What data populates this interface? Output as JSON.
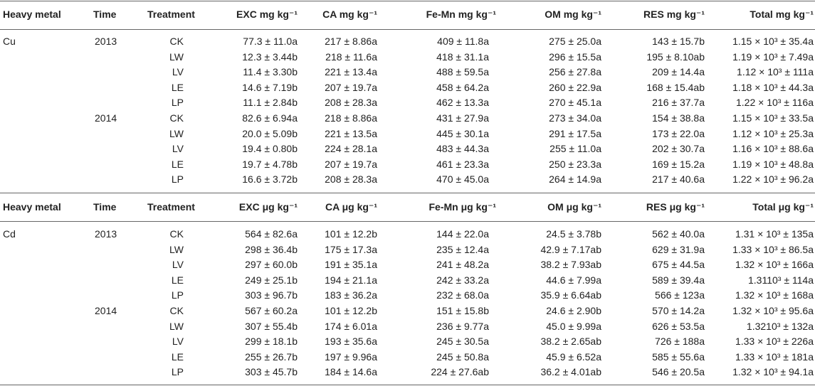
{
  "sections": [
    {
      "header": [
        "Heavy metal",
        "Time",
        "Treatment",
        "EXC mg kg⁻¹",
        "CA mg kg⁻¹",
        "Fe-Mn mg kg⁻¹",
        "OM mg kg⁻¹",
        "RES mg kg⁻¹",
        "Total mg kg⁻¹"
      ],
      "metal": "Cu",
      "groups": [
        {
          "time": "2013",
          "rows": [
            [
              "CK",
              "77.3 ± 11.0a",
              "217 ± 8.86a",
              "409 ± 11.8a",
              "275 ± 25.0a",
              "143 ± 15.7b",
              "1.15 × 10³ ± 35.4a"
            ],
            [
              "LW",
              "12.3 ± 3.44b",
              "218 ± 11.6a",
              "418 ± 31.1a",
              "296 ± 15.5a",
              "195 ± 8.10ab",
              "1.19 × 10³ ± 7.49a"
            ],
            [
              "LV",
              "11.4 ± 3.30b",
              "221 ± 13.4a",
              "488 ± 59.5a",
              "256 ± 27.8a",
              "209 ± 14.4a",
              "1.12 × 10³ ± 111a"
            ],
            [
              "LE",
              "14.6 ± 7.19b",
              "207 ± 19.7a",
              "458 ± 64.2a",
              "260 ± 22.9a",
              "168 ± 15.4ab",
              "1.18 × 10³ ± 44.3a"
            ],
            [
              "LP",
              "11.1 ± 2.84b",
              "208 ± 28.3a",
              "462 ± 13.3a",
              "270 ± 45.1a",
              "216 ± 37.7a",
              "1.22 × 10³ ± 116a"
            ]
          ]
        },
        {
          "time": "2014",
          "rows": [
            [
              "CK",
              "82.6 ± 6.94a",
              "218 ± 8.86a",
              "431 ± 27.9a",
              "273 ± 34.0a",
              "154 ± 38.8a",
              "1.15 × 10³ ± 33.5a"
            ],
            [
              "LW",
              "20.0 ± 5.09b",
              "221 ± 13.5a",
              "445 ± 30.1a",
              "291 ± 17.5a",
              "173 ± 22.0a",
              "1.12 × 10³ ± 25.3a"
            ],
            [
              "LV",
              "19.4 ± 0.80b",
              "224 ± 28.1a",
              "483 ± 44.3a",
              "255 ± 11.0a",
              "202 ± 30.7a",
              "1.16 × 10³ ± 88.6a"
            ],
            [
              "LE",
              "19.7 ± 4.78b",
              "207 ± 19.7a",
              "461 ± 23.3a",
              "250 ± 23.3a",
              "169 ± 15.2a",
              "1.19 × 10³ ± 48.8a"
            ],
            [
              "LP",
              "16.6 ± 3.72b",
              "208 ± 28.3a",
              "470 ± 45.0a",
              "264 ± 14.9a",
              "217 ± 40.6a",
              "1.22 × 10³ ± 96.2a"
            ]
          ]
        }
      ]
    },
    {
      "header": [
        "Heavy metal",
        "Time",
        "Treatment",
        "EXC μg kg⁻¹",
        "CA μg kg⁻¹",
        "Fe-Mn μg kg⁻¹",
        "OM μg kg⁻¹",
        "RES μg kg⁻¹",
        "Total μg kg⁻¹"
      ],
      "metal": "Cd",
      "groups": [
        {
          "time": "2013",
          "rows": [
            [
              "CK",
              "564 ± 82.6a",
              "101 ± 12.2b",
              "144 ± 22.0a",
              "24.5 ± 3.78b",
              "562 ± 40.0a",
              "1.31 × 10³ ± 135a"
            ],
            [
              "LW",
              "298 ± 36.4b",
              "175 ± 17.3a",
              "235 ± 12.4a",
              "42.9 ± 7.17ab",
              "629 ± 31.9a",
              "1.33 × 10³ ± 86.5a"
            ],
            [
              "LV",
              "297 ± 60.0b",
              "191 ± 35.1a",
              "241 ± 48.2a",
              "38.2 ± 7.93ab",
              "675 ± 44.5a",
              "1.32 × 10³ ± 166a"
            ],
            [
              "LE",
              "249 ± 25.1b",
              "194 ± 21.1a",
              "242 ± 33.2a",
              "44.6 ± 7.99a",
              "589 ± 39.4a",
              "1.3110³ ± 114a"
            ],
            [
              "LP",
              "303 ± 96.7b",
              "183 ± 36.2a",
              "232 ± 68.0a",
              "35.9 ± 6.64ab",
              "566 ± 123a",
              "1.32 × 10³ ± 168a"
            ]
          ]
        },
        {
          "time": "2014",
          "rows": [
            [
              "CK",
              "567 ± 60.2a",
              "101 ± 12.2b",
              "151 ± 15.8b",
              "24.6 ± 2.90b",
              "570 ± 14.2a",
              "1.32 × 10³ ± 95.6a"
            ],
            [
              "LW",
              "307 ± 55.4b",
              "174 ± 6.01a",
              "236 ± 9.77a",
              "45.0 ± 9.99a",
              "626 ± 53.5a",
              "1.3210³ ± 132a"
            ],
            [
              "LV",
              "299 ± 18.1b",
              "193 ± 35.6a",
              "245 ± 30.5a",
              "38.2 ± 2.65ab",
              "726 ± 188a",
              "1.33 × 10³ ± 226a"
            ],
            [
              "LE",
              "255 ± 26.7b",
              "197 ± 9.96a",
              "245 ± 50.8a",
              "45.9 ± 6.52a",
              "585 ± 55.6a",
              "1.33 × 10³ ± 181a"
            ],
            [
              "LP",
              "303 ± 45.7b",
              "184 ± 14.6a",
              "224 ± 27.6ab",
              "36.2 ± 4.01ab",
              "546 ± 20.5a",
              "1.32 × 10³ ± 94.1a"
            ]
          ]
        }
      ]
    }
  ]
}
